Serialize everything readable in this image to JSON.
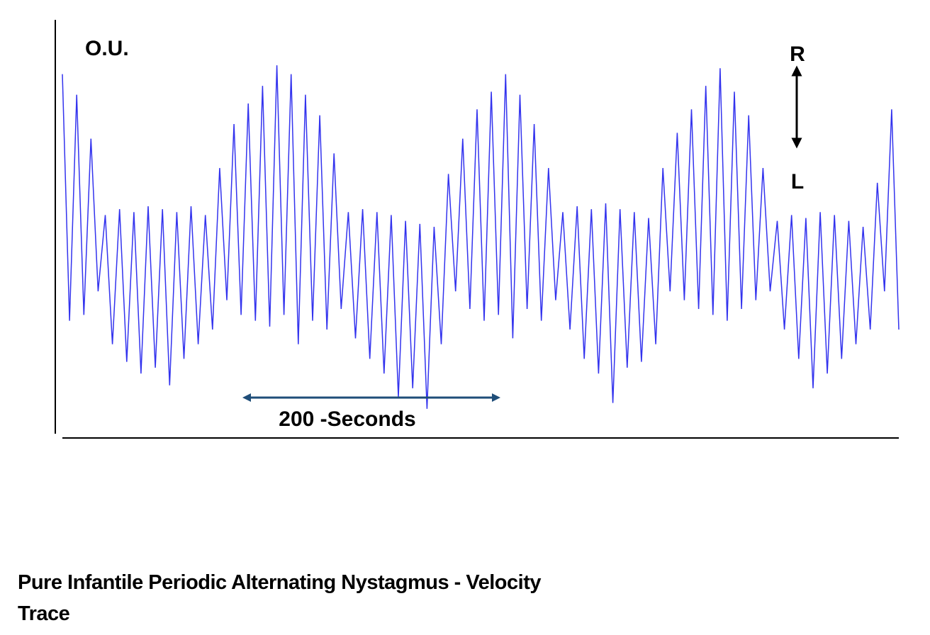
{
  "chart_data": {
    "type": "line",
    "title": "Pure Infantile Periodic Alternating Nystagmus - Velocity Trace",
    "annotations": [
      "O.U.",
      "R",
      "L",
      "200 -Seconds"
    ],
    "series": [
      {
        "color": "#3333ee",
        "values": [
          62,
          -22,
          55,
          -20,
          40,
          -12,
          14,
          -30,
          16,
          -36,
          15,
          -40,
          17,
          -38,
          16,
          -44,
          15,
          -35,
          17,
          -30,
          14,
          -25,
          30,
          -15,
          45,
          -20,
          52,
          -22,
          58,
          -24,
          65,
          -20,
          62,
          -30,
          55,
          -22,
          48,
          -25,
          35,
          -18,
          15,
          -28,
          16,
          -35,
          15,
          -40,
          14,
          -48,
          12,
          -45,
          11,
          -52,
          10,
          -30,
          28,
          -12,
          40,
          -18,
          50,
          -22,
          56,
          -20,
          62,
          -28,
          55,
          -18,
          45,
          -22,
          30,
          -15,
          15,
          -25,
          17,
          -35,
          16,
          -40,
          18,
          -50,
          16,
          -38,
          15,
          -36,
          13,
          -30,
          30,
          -12,
          42,
          -15,
          50,
          -18,
          58,
          -20,
          64,
          -22,
          56,
          -18,
          48,
          -15,
          30,
          -12,
          12,
          -25,
          14,
          -35,
          13,
          -45,
          15,
          -40,
          14,
          -35,
          12,
          -30,
          10,
          -25,
          25,
          -12,
          50,
          -25
        ]
      }
    ],
    "ylim": [
      -60,
      80
    ]
  }
}
